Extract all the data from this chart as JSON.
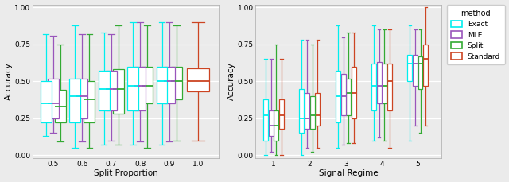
{
  "methods": [
    "Exact",
    "MLE",
    "Split",
    "Standard"
  ],
  "method_colors": [
    "#00EEEE",
    "#9955BB",
    "#33AA33",
    "#CC4422"
  ],
  "left_xlabel": "Split Proportion",
  "left_ylabel": "Accuracy",
  "left_xticks": [
    0.5,
    0.6,
    0.7,
    0.8,
    0.9,
    1.0
  ],
  "left_xlim": [
    0.43,
    1.07
  ],
  "left_ylim": [
    -0.02,
    1.02
  ],
  "right_xlabel": "Signal Regime",
  "right_ylabel": "Accuracy",
  "right_xticks": [
    1,
    2,
    3,
    4,
    5
  ],
  "right_xlim": [
    0.5,
    5.65
  ],
  "right_ylim": [
    -0.02,
    1.02
  ],
  "left_boxdata": {
    "0.5": {
      "Exact": [
        0.13,
        0.22,
        0.35,
        0.5,
        0.82
      ],
      "MLE": [
        0.15,
        0.25,
        0.35,
        0.52,
        0.81
      ],
      "Split": [
        0.09,
        0.22,
        0.33,
        0.44,
        0.75
      ],
      "Standard": null
    },
    "0.6": {
      "Exact": [
        0.05,
        0.22,
        0.4,
        0.52,
        0.88
      ],
      "MLE": [
        0.09,
        0.25,
        0.4,
        0.52,
        0.82
      ],
      "Split": [
        0.05,
        0.22,
        0.38,
        0.5,
        0.82
      ],
      "Standard": null
    },
    "0.7": {
      "Exact": [
        0.07,
        0.3,
        0.45,
        0.57,
        0.83
      ],
      "MLE": [
        0.1,
        0.3,
        0.45,
        0.57,
        0.82
      ],
      "Split": [
        0.07,
        0.28,
        0.45,
        0.58,
        0.88
      ],
      "Standard": null
    },
    "0.8": {
      "Exact": [
        0.07,
        0.3,
        0.47,
        0.6,
        0.9
      ],
      "MLE": [
        0.09,
        0.3,
        0.47,
        0.6,
        0.9
      ],
      "Split": [
        0.05,
        0.35,
        0.47,
        0.6,
        0.88
      ],
      "Standard": null
    },
    "0.9": {
      "Exact": [
        0.07,
        0.35,
        0.5,
        0.6,
        0.9
      ],
      "MLE": [
        0.09,
        0.35,
        0.5,
        0.6,
        0.9
      ],
      "Split": [
        0.1,
        0.38,
        0.5,
        0.6,
        0.88
      ],
      "Standard": null
    },
    "1.0": {
      "Exact": null,
      "MLE": null,
      "Split": null,
      "Standard": [
        0.1,
        0.43,
        0.5,
        0.59,
        0.9
      ]
    }
  },
  "right_boxdata": {
    "1": {
      "Exact": [
        0.0,
        0.1,
        0.27,
        0.38,
        0.65
      ],
      "MLE": [
        0.02,
        0.13,
        0.2,
        0.3,
        0.65
      ],
      "Split": [
        0.0,
        0.1,
        0.2,
        0.3,
        0.75
      ],
      "Standard": [
        0.0,
        0.18,
        0.27,
        0.38,
        0.65
      ]
    },
    "2": {
      "Exact": [
        0.0,
        0.15,
        0.25,
        0.45,
        0.78
      ],
      "MLE": [
        0.05,
        0.18,
        0.25,
        0.42,
        0.78
      ],
      "Split": [
        0.02,
        0.18,
        0.27,
        0.4,
        0.75
      ],
      "Standard": [
        0.05,
        0.2,
        0.27,
        0.42,
        0.78
      ]
    },
    "3": {
      "Exact": [
        0.05,
        0.22,
        0.4,
        0.57,
        0.88
      ],
      "MLE": [
        0.07,
        0.27,
        0.4,
        0.55,
        0.8
      ],
      "Split": [
        0.08,
        0.27,
        0.42,
        0.52,
        0.83
      ],
      "Standard": [
        0.08,
        0.25,
        0.42,
        0.6,
        0.83
      ]
    },
    "4": {
      "Exact": [
        0.1,
        0.3,
        0.47,
        0.62,
        0.88
      ],
      "MLE": [
        0.12,
        0.35,
        0.47,
        0.63,
        0.85
      ],
      "Split": [
        0.1,
        0.35,
        0.47,
        0.62,
        0.85
      ],
      "Standard": [
        0.05,
        0.3,
        0.5,
        0.62,
        0.85
      ]
    },
    "5": {
      "Exact": [
        0.1,
        0.5,
        0.62,
        0.68,
        0.88
      ],
      "MLE": [
        0.2,
        0.47,
        0.62,
        0.68,
        0.85
      ],
      "Split": [
        0.15,
        0.45,
        0.62,
        0.67,
        0.85
      ],
      "Standard": [
        0.2,
        0.47,
        0.65,
        0.75,
        1.0
      ]
    }
  },
  "background_color": "#EBEBEB",
  "panel_bg": "#EBEBEB",
  "grid_color": "#FFFFFF",
  "yticks": [
    0.0,
    0.25,
    0.5,
    0.75,
    1.0
  ],
  "ytick_labels": [
    "0.00",
    "0.25",
    "0.50",
    "0.75",
    "1.00"
  ]
}
